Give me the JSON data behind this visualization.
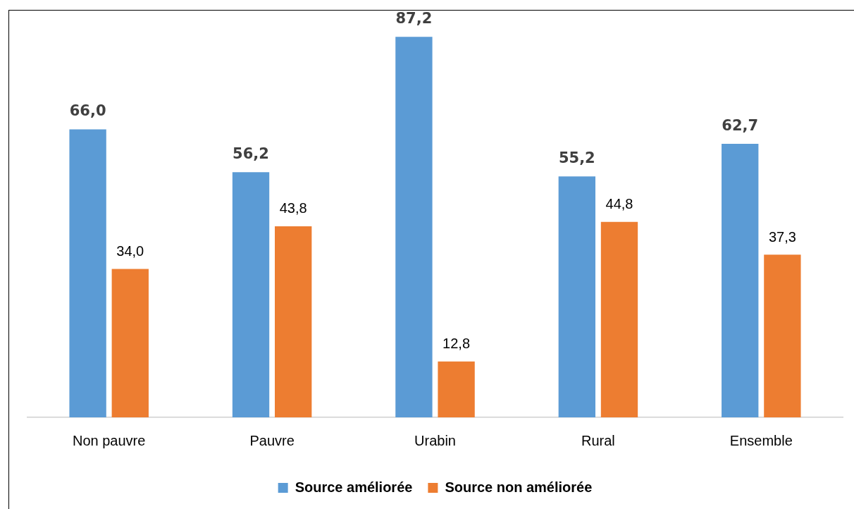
{
  "chart_data": {
    "type": "bar",
    "categories": [
      "Non pauvre",
      "Pauvre",
      "Urabin",
      "Rural",
      "Ensemble"
    ],
    "series": [
      {
        "name": "Source améliorée",
        "color": "#5b9bd5",
        "values": [
          66.0,
          56.2,
          87.2,
          55.2,
          62.7
        ],
        "value_labels": [
          "66,0",
          "56,2",
          "87,2",
          "55,2",
          "62,7"
        ]
      },
      {
        "name": "Source non améliorée",
        "color": "#ed7d31",
        "values": [
          34.0,
          43.8,
          12.8,
          44.8,
          37.3
        ],
        "value_labels": [
          "34,0",
          "43,8",
          "12,8",
          "44,8",
          "37,3"
        ]
      }
    ],
    "legend": "bottom",
    "grid": false
  }
}
